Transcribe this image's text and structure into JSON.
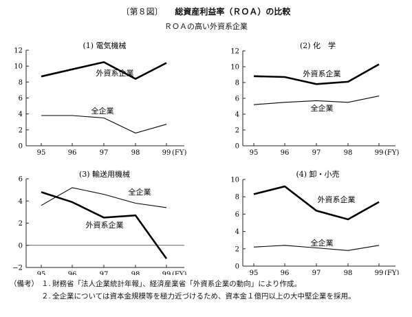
{
  "header": {
    "fig_no": "〔第８図〕",
    "title": "総資産利益率（ＲＯＡ）の比較",
    "subtitle": "ＲＯＡの高い外資系企業"
  },
  "notes": {
    "label": "（備考）",
    "items": [
      {
        "num": "１.",
        "text": "財務省「法人企業統計年報」、経済産業省「外資系企業の動向」により作成。"
      },
      {
        "num": "２.",
        "text": "全企業については資本金規模等を極力近づけるため、資本金１億円以上の大中堅企業を採用。"
      }
    ]
  },
  "chart_data": [
    {
      "type": "line",
      "title": "(1)  電気機械",
      "categories": [
        "95",
        "96",
        "97",
        "98",
        "99"
      ],
      "x_unit": "(FY)",
      "ylim": [
        0,
        12
      ],
      "yticks": [
        "0",
        "2",
        "4",
        "6",
        "8",
        "10",
        "12"
      ],
      "series": [
        {
          "name": "外資系企業",
          "values": [
            8.7,
            9.6,
            10.5,
            8.4,
            10.4
          ],
          "bold": true
        },
        {
          "name": "全企業",
          "values": [
            3.8,
            3.8,
            3.5,
            1.6,
            2.7
          ],
          "bold": false
        }
      ]
    },
    {
      "type": "line",
      "title": "(2)  化　学",
      "categories": [
        "95",
        "96",
        "97",
        "98",
        "99"
      ],
      "x_unit": "(FY)",
      "ylim": [
        0,
        12
      ],
      "yticks": [
        "0",
        "2",
        "4",
        "6",
        "8",
        "10",
        "12"
      ],
      "series": [
        {
          "name": "外資系企業",
          "values": [
            8.8,
            8.7,
            7.8,
            8.1,
            10.3
          ],
          "bold": true
        },
        {
          "name": "全企業",
          "values": [
            5.2,
            5.5,
            5.7,
            5.5,
            6.3
          ],
          "bold": false
        }
      ]
    },
    {
      "type": "line",
      "title": "(3)  輸送用機械",
      "categories": [
        "95",
        "96",
        "97",
        "98",
        "99"
      ],
      "x_unit": "(FY)",
      "ylim": [
        -2,
        6
      ],
      "yticks": [
        "−2",
        "0",
        "2",
        "4",
        "6"
      ],
      "series": [
        {
          "name": "外資系企業",
          "values": [
            4.8,
            3.9,
            2.5,
            2.7,
            -1.2
          ],
          "bold": true
        },
        {
          "name": "全企業",
          "values": [
            3.6,
            5.2,
            4.6,
            3.8,
            3.4
          ],
          "bold": false
        }
      ]
    },
    {
      "type": "line",
      "title": "(4)  卸・小売",
      "categories": [
        "95",
        "96",
        "97",
        "98",
        "99"
      ],
      "x_unit": "(FY)",
      "ylim": [
        0,
        10
      ],
      "yticks": [
        "0",
        "2",
        "4",
        "6",
        "8",
        "10"
      ],
      "series": [
        {
          "name": "外資系企業",
          "values": [
            8.3,
            9.2,
            6.4,
            5.4,
            7.4
          ],
          "bold": true
        },
        {
          "name": "全企業",
          "values": [
            2.2,
            2.4,
            2.1,
            1.8,
            2.4
          ],
          "bold": false
        }
      ]
    }
  ]
}
